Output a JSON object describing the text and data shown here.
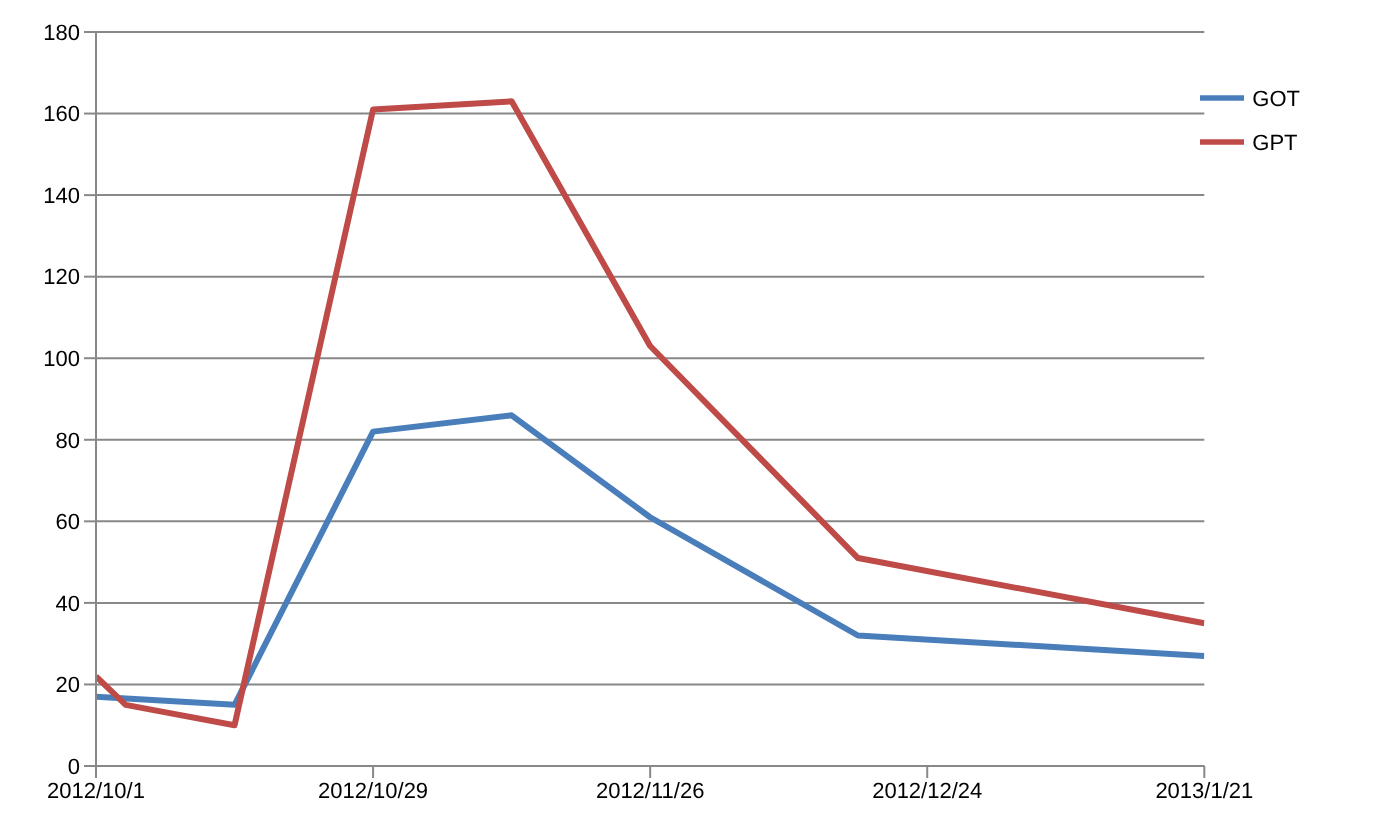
{
  "chart_data": {
    "type": "line",
    "ylim": [
      0,
      180
    ],
    "yticks": [
      0,
      20,
      40,
      60,
      80,
      100,
      120,
      140,
      160,
      180
    ],
    "xlim": [
      "2012-10-01",
      "2013-01-21"
    ],
    "xticks": [
      {
        "value": "2012-10-01",
        "label": "2012/10/1"
      },
      {
        "value": "2012-10-29",
        "label": "2012/10/29"
      },
      {
        "value": "2012-11-26",
        "label": "2012/11/26"
      },
      {
        "value": "2012-12-24",
        "label": "2012/12/24"
      },
      {
        "value": "2013-01-21",
        "label": "2013/1/21"
      }
    ],
    "series": [
      {
        "name": "GOT",
        "color": "#4a7ebb",
        "x": [
          "2012-10-01",
          "2012-10-15",
          "2012-10-29",
          "2012-11-12",
          "2012-11-26",
          "2012-12-17",
          "2013-01-21"
        ],
        "values": [
          17,
          15,
          82,
          86,
          61,
          32,
          27
        ]
      },
      {
        "name": "GPT",
        "color": "#be4b48",
        "x": [
          "2012-10-01",
          "2012-10-04",
          "2012-10-15",
          "2012-10-29",
          "2012-11-12",
          "2012-11-26",
          "2012-12-17",
          "2013-01-21"
        ],
        "values": [
          22,
          15,
          10,
          161,
          163,
          103,
          51,
          35
        ]
      }
    ],
    "grid": "y",
    "legend": "top right",
    "marker": "none",
    "line_style": "solid"
  }
}
